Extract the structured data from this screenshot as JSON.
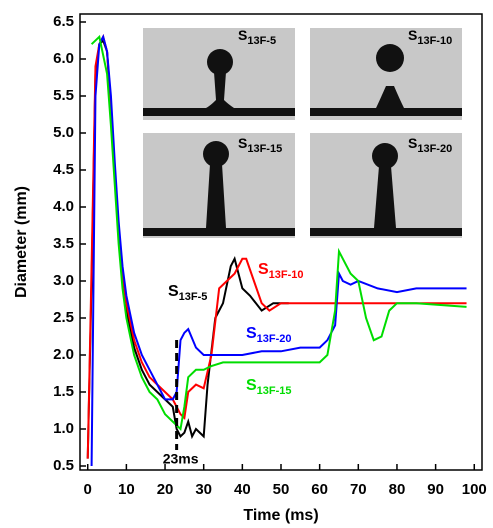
{
  "chart_data": {
    "type": "line",
    "xlabel": "Time (ms)",
    "ylabel": "Diameter (mm)",
    "xlim": [
      -2,
      102
    ],
    "ylim": [
      0.5,
      6.5
    ],
    "xticks": [
      0,
      10,
      20,
      30,
      40,
      50,
      60,
      70,
      80,
      90,
      100
    ],
    "yticks": [
      0.5,
      {
        "value": 1,
        "label": "1.0"
      },
      1.5,
      {
        "value": 2,
        "label": "2.0"
      },
      2.5,
      {
        "value": 3,
        "label": "3.0"
      },
      3.5,
      {
        "value": 4,
        "label": "4.0"
      },
      4.5,
      {
        "value": 5,
        "label": "5.0"
      },
      5.5,
      {
        "value": 6,
        "label": "6.0"
      },
      6.5
    ],
    "annotation": {
      "text": "23ms",
      "x": 23
    },
    "insets": [
      "S13F-5",
      "S13F-10",
      "S13F-15",
      "S13F-20"
    ],
    "series": [
      {
        "name": "S13F-5",
        "color": "#000000",
        "x": [
          0,
          1,
          2,
          3,
          4,
          5,
          6,
          7,
          8,
          9,
          10,
          12,
          14,
          16,
          18,
          20,
          22,
          23,
          24,
          25,
          26,
          27,
          28,
          30,
          31,
          33,
          35,
          37,
          38,
          39,
          40,
          42,
          45,
          48,
          52
        ],
        "values": [
          0.6,
          3,
          5.8,
          6.2,
          6.25,
          6.1,
          5.3,
          4.4,
          3.6,
          3.0,
          2.6,
          2.1,
          1.8,
          1.6,
          1.5,
          1.4,
          1.3,
          1.0,
          0.9,
          0.95,
          1.1,
          0.9,
          1.0,
          0.9,
          1.6,
          2.5,
          2.7,
          3.2,
          3.3,
          3.1,
          2.9,
          2.8,
          2.6,
          2.7,
          2.7
        ]
      },
      {
        "name": "S13F-10",
        "color": "#ff0000",
        "x": [
          0,
          1,
          2,
          3,
          4,
          5,
          6,
          7,
          8,
          9,
          10,
          12,
          14,
          16,
          18,
          20,
          22,
          23,
          24,
          25,
          26,
          28,
          30,
          32,
          34,
          36,
          38,
          40,
          41,
          43,
          45,
          47,
          50,
          60,
          70,
          80,
          90,
          98
        ],
        "values": [
          0.6,
          3.2,
          5.9,
          6.2,
          6.3,
          6.1,
          5.4,
          4.5,
          3.7,
          3.1,
          2.7,
          2.2,
          1.9,
          1.7,
          1.6,
          1.5,
          1.4,
          1.3,
          1.2,
          1.15,
          1.5,
          1.6,
          1.55,
          2.0,
          2.9,
          3.0,
          3.1,
          3.3,
          3.3,
          3.0,
          2.7,
          2.6,
          2.7,
          2.7,
          2.7,
          2.7,
          2.7,
          2.7
        ]
      },
      {
        "name": "S13F-20",
        "color": "#0000ff",
        "x": [
          1,
          2,
          3,
          4,
          5,
          6,
          7,
          8,
          9,
          10,
          12,
          14,
          16,
          18,
          20,
          22,
          23,
          24,
          25,
          26,
          28,
          30,
          35,
          40,
          45,
          50,
          55,
          60,
          62,
          64,
          65,
          66,
          68,
          70,
          75,
          80,
          85,
          90,
          98
        ],
        "values": [
          0.5,
          5.5,
          6.2,
          6.3,
          6.1,
          5.5,
          4.6,
          3.8,
          3.2,
          2.8,
          2.3,
          2.0,
          1.8,
          1.6,
          1.4,
          1.4,
          1.5,
          2.2,
          2.3,
          2.35,
          2.1,
          2.0,
          2.0,
          2.0,
          2.05,
          2.05,
          2.1,
          2.1,
          2.2,
          2.4,
          3.1,
          3.0,
          2.95,
          3.0,
          2.9,
          2.85,
          2.9,
          2.9,
          2.9
        ]
      },
      {
        "name": "S13F-15",
        "color": "#00dd00",
        "x": [
          1,
          3,
          5,
          6,
          7,
          8,
          9,
          10,
          12,
          14,
          16,
          18,
          20,
          22,
          24,
          25,
          26,
          28,
          30,
          32,
          35,
          45,
          55,
          60,
          62,
          64,
          65,
          66,
          68,
          70,
          72,
          74,
          76,
          78,
          80,
          85,
          98
        ],
        "values": [
          6.2,
          6.3,
          5.8,
          5.1,
          4.3,
          3.5,
          2.9,
          2.5,
          2.0,
          1.7,
          1.5,
          1.4,
          1.2,
          1.1,
          1.0,
          1.3,
          1.7,
          1.8,
          1.8,
          1.85,
          1.9,
          1.9,
          1.9,
          1.9,
          2.0,
          2.6,
          3.4,
          3.3,
          3.1,
          3.0,
          2.5,
          2.2,
          2.25,
          2.6,
          2.7,
          2.7,
          2.65
        ]
      }
    ]
  }
}
